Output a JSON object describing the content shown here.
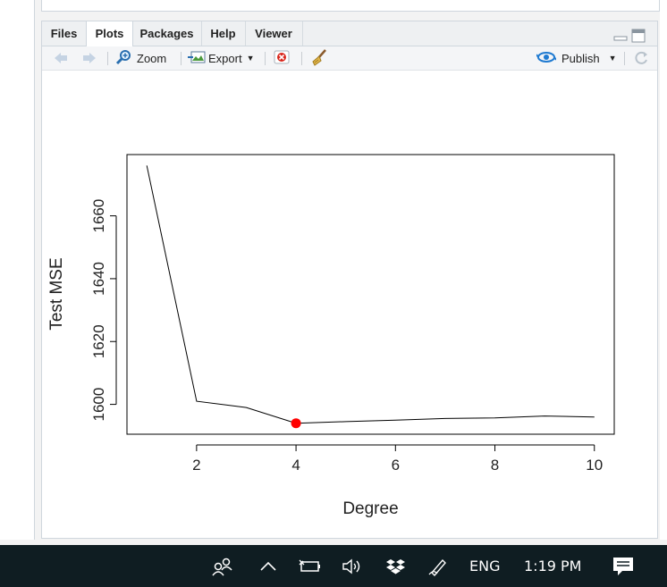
{
  "pane": {
    "tabs": [
      {
        "label": "Files"
      },
      {
        "label": "Plots"
      },
      {
        "label": "Packages"
      },
      {
        "label": "Help"
      },
      {
        "label": "Viewer"
      }
    ],
    "active_tab": "Plots"
  },
  "toolbar": {
    "zoom_label": "Zoom",
    "export_label": "Export",
    "publish_label": "Publish"
  },
  "chart_data": {
    "type": "line",
    "xlabel": "Degree",
    "ylabel": "Test MSE",
    "x": [
      1,
      2,
      3,
      4,
      5,
      6,
      7,
      8,
      9,
      10
    ],
    "series": [
      {
        "values": [
          1676,
          1601,
          1599,
          1594,
          1594.5,
          1595,
          1595.5,
          1595.7,
          1596.3,
          1596
        ]
      }
    ],
    "highlight_point": {
      "x": 4,
      "y": 1594,
      "color": "#ff0000"
    },
    "xticks": [
      "2",
      "4",
      "6",
      "8",
      "10"
    ],
    "yticks": [
      "1600",
      "1620",
      "1640",
      "1660"
    ],
    "xlim": [
      0.6,
      10.4
    ],
    "ylim": [
      1590.5,
      1679.5
    ]
  },
  "taskbar": {
    "language": "ENG",
    "time": "1:19 PM"
  },
  "colors": {
    "taskbar_bg": "#0f1d22",
    "pane_border": "#cfd6dd",
    "highlight": "#ff0000",
    "publish_blue": "#1f7ad1"
  },
  "icons": [
    "back-arrow-icon",
    "forward-arrow-icon",
    "zoom-icon",
    "export-icon",
    "remove-plot-icon",
    "broom-icon",
    "publish-icon",
    "refresh-icon",
    "minimize-icon",
    "maximize-icon",
    "people-icon",
    "chevron-up-icon",
    "battery-icon",
    "volume-icon",
    "dropbox-icon",
    "pen-icon",
    "notification-icon"
  ]
}
